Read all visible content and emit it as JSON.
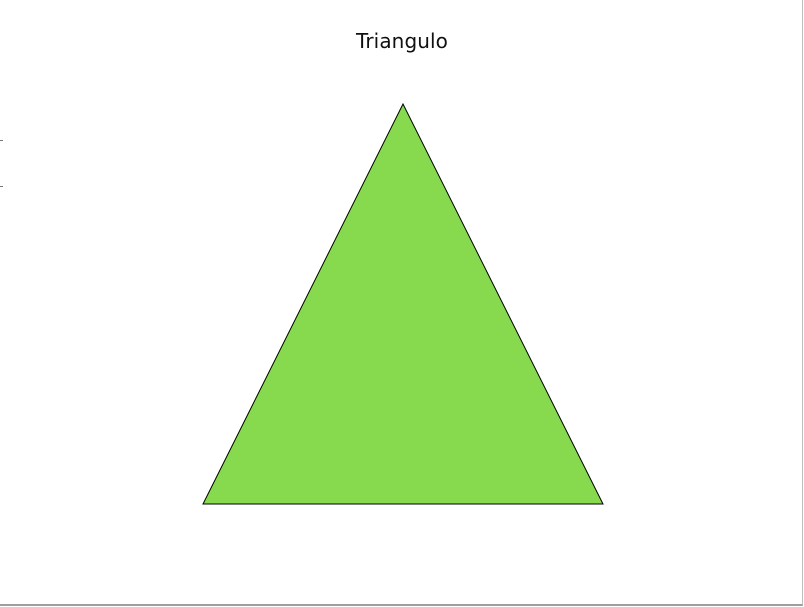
{
  "title": "Triangulo",
  "shape": {
    "kind": "triangle",
    "fill": "#87DA4E",
    "stroke": "#000000"
  }
}
